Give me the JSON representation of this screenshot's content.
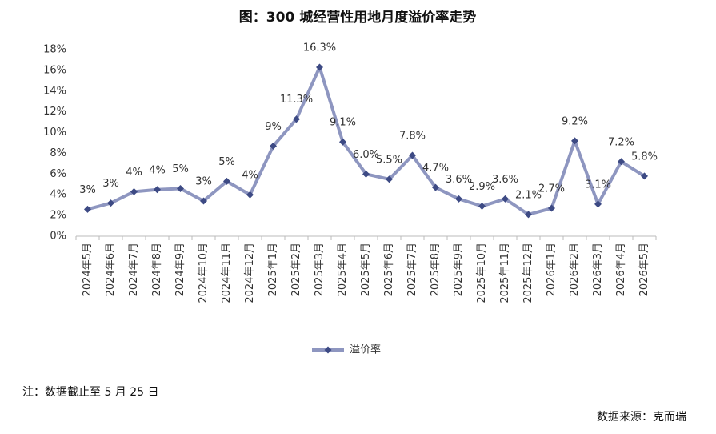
{
  "chart_data": {
    "type": "line",
    "title": "图：300 城经营性用地月度溢价率走势",
    "categories": [
      "2024年5月",
      "2024年6月",
      "2024年7月",
      "2024年8月",
      "2024年9月",
      "2024年10月",
      "2024年11月",
      "2024年12月",
      "2025年1月",
      "2025年2月",
      "2025年3月",
      "2025年4月",
      "2025年5月",
      "2025年6月",
      "2025年7月",
      "2025年8月",
      "2025年9月",
      "2025年10月",
      "2025年11月",
      "2025年12月",
      "2026年1月",
      "2026年2月",
      "2026年3月",
      "2026年4月",
      "2026年5月"
    ],
    "series": [
      {
        "name": "溢价率",
        "color": "#8e96c0",
        "marker_color": "#3d4a84",
        "values": [
          2.6,
          3.2,
          4.3,
          4.5,
          4.6,
          3.4,
          5.3,
          4.0,
          8.7,
          11.3,
          16.3,
          9.1,
          6.0,
          5.5,
          7.8,
          4.7,
          3.6,
          2.9,
          3.6,
          2.1,
          2.7,
          9.2,
          3.1,
          7.2,
          5.8
        ],
        "value_labels": [
          "3%",
          "3%",
          "4%",
          "4%",
          "5%",
          "3%",
          "5%",
          "4%",
          "9%",
          "11.3%",
          "16.3%",
          "9.1%",
          "6.0%",
          "5.5%",
          "7.8%",
          "4.7%",
          "3.6%",
          "2.9%",
          "3.6%",
          "2.1%",
          "2.7%",
          "9.2%",
          "3.1%",
          "7.2%",
          "5.8%"
        ]
      }
    ],
    "ylim": [
      0,
      18
    ],
    "yticks": [
      {
        "value": 0,
        "label": "0%"
      },
      {
        "value": 2,
        "label": "2%"
      },
      {
        "value": 4,
        "label": "4%"
      },
      {
        "value": 6,
        "label": "6%"
      },
      {
        "value": 8,
        "label": "8%"
      },
      {
        "value": 10,
        "label": "10%"
      },
      {
        "value": 12,
        "label": "12%"
      },
      {
        "value": 14,
        "label": "14%"
      },
      {
        "value": 16,
        "label": "16%"
      },
      {
        "value": 18,
        "label": "18%"
      }
    ],
    "grid": false,
    "legend": "bottom",
    "note": "注：数据截止至 5 月 25 日",
    "source": "数据来源：克而瑞"
  }
}
